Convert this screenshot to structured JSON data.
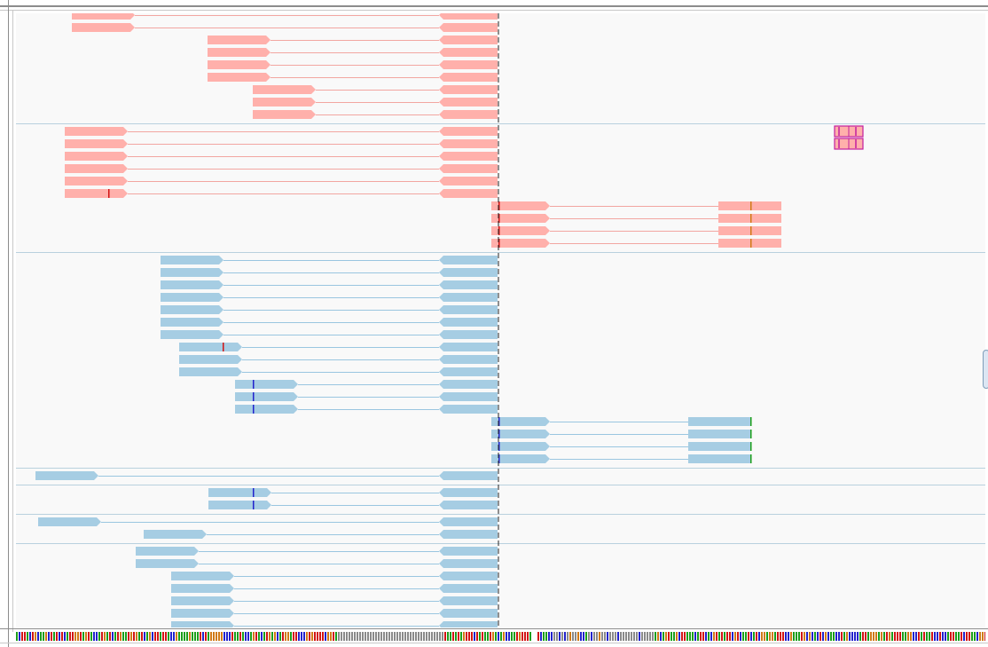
{
  "colors": {
    "forward_read": "#ffb0ab",
    "forward_line": "#f2a6a1",
    "reverse_read": "#a6cde3",
    "reverse_line": "#9ac6e0",
    "separator": "#b9d1de",
    "center_line": "#222222",
    "soft_clip": "#c21f9e",
    "mismatch_a": "#1a9e1a",
    "mismatch_c": "#2222cc",
    "mismatch_g": "#d07a16",
    "mismatch_t": "#d21414",
    "track_bg": "#f9f9f9"
  },
  "icons": {
    "scroll_handle": "scrollbar-thumb-icon",
    "center_line": "center-guide-icon"
  },
  "alignment_groups": [
    {
      "strand": "forward",
      "reads": [
        {
          "count": 2,
          "mismatches": [],
          "clipped": false
        },
        {
          "count": 4,
          "mismatches": [],
          "clipped": false
        },
        {
          "count": 3,
          "mismatches": [],
          "clipped": false
        }
      ]
    },
    {
      "strand": "forward",
      "reads": [
        {
          "count": 5,
          "mismatches": [],
          "clipped": true
        },
        {
          "count": 1,
          "mismatches": [
            "T"
          ],
          "clipped": false
        },
        {
          "count": 4,
          "mismatches": [
            "T",
            "G"
          ],
          "clipped": false
        }
      ]
    },
    {
      "strand": "reverse",
      "reads": [
        {
          "count": 7,
          "mismatches": [],
          "clipped": false
        },
        {
          "count": 3,
          "mismatches": [
            "T"
          ],
          "clipped": false
        },
        {
          "count": 3,
          "mismatches": [
            "C"
          ],
          "clipped": false
        },
        {
          "count": 4,
          "mismatches": [
            "A"
          ],
          "clipped": false
        }
      ]
    },
    {
      "strand": "reverse",
      "reads": [
        {
          "count": 1,
          "mismatches": [],
          "clipped": false
        }
      ]
    },
    {
      "strand": "reverse",
      "reads": [
        {
          "count": 2,
          "mismatches": [
            "C"
          ],
          "clipped": false
        }
      ]
    },
    {
      "strand": "reverse",
      "reads": [
        {
          "count": 2,
          "mismatches": [],
          "clipped": false
        }
      ]
    },
    {
      "strand": "reverse",
      "reads": [
        {
          "count": 7,
          "mismatches": [],
          "clipped": false
        }
      ]
    }
  ],
  "reference_sequence_palette": [
    "#d21414",
    "#1a9e1a",
    "#2222cc",
    "#d07a16",
    "#8a8a8a"
  ]
}
